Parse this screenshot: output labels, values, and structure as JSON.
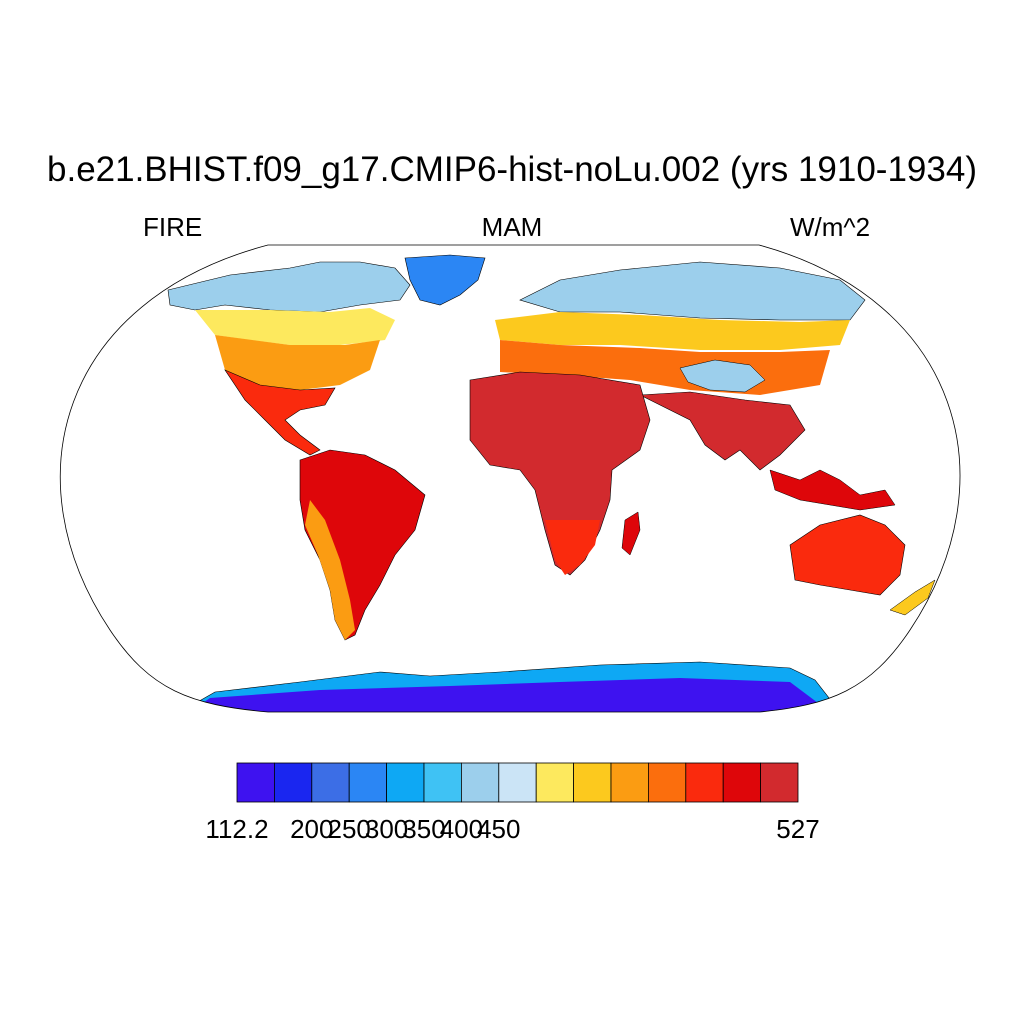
{
  "title": "b.e21.BHIST.f09_g17.CMIP6-hist-noLu.002 (yrs 1910-1934)",
  "left_string": "FIRE",
  "center_string": "MAM",
  "right_string": "W/m^2",
  "map": {
    "projection": "Robinson",
    "field": "FIRE",
    "season": "MAM",
    "units": "W/m^2",
    "ocean": "missing (white)",
    "coastlines": true
  },
  "colorbar": {
    "orientation": "horizontal",
    "colors": [
      "#3e12f0",
      "#1a26f0",
      "#3c6ee6",
      "#2b86f4",
      "#0ea8f4",
      "#3fc2f4",
      "#9ccfec",
      "#cbe4f6",
      "#fde95e",
      "#fcc91e",
      "#fb9c12",
      "#fb6e0d",
      "#fa2a0d",
      "#de060a",
      "#d22a2e"
    ],
    "tick_labels": [
      {
        "label": "112.2",
        "boundary": 0
      },
      {
        "label": "200",
        "boundary": 2
      },
      {
        "label": "250",
        "boundary": 3
      },
      {
        "label": "300",
        "boundary": 4
      },
      {
        "label": "350",
        "boundary": 5
      },
      {
        "label": "400",
        "boundary": 6
      },
      {
        "label": "450",
        "boundary": 7
      },
      {
        "label": "527",
        "boundary": 15
      }
    ]
  }
}
